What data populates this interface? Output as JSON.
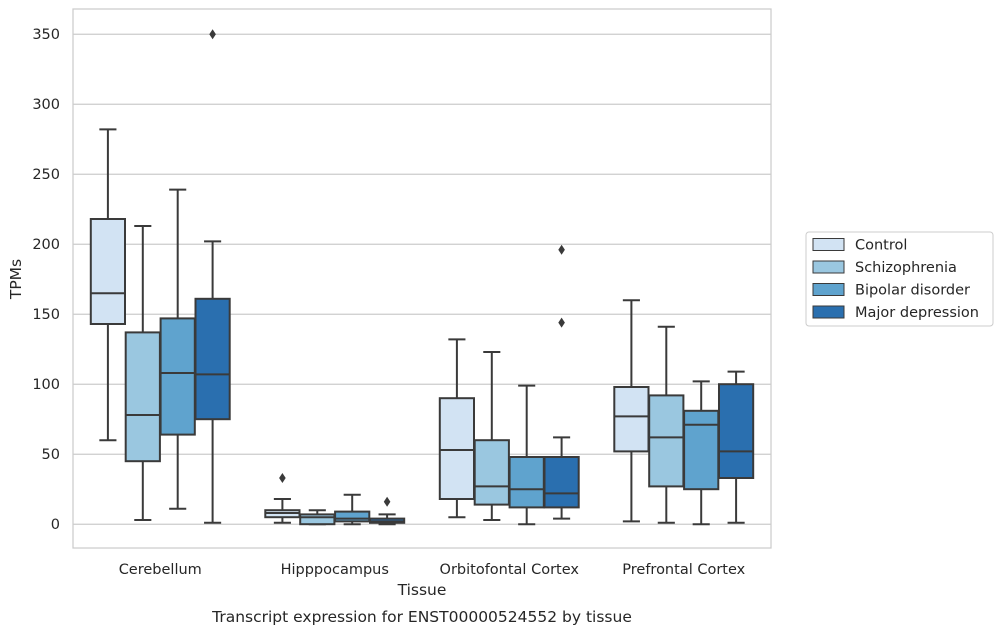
{
  "chart_data": {
    "type": "box",
    "title": "",
    "caption": "Transcript expression for ENST00000524552 by tissue",
    "xlabel": "Tissue",
    "ylabel": "TPMs",
    "ylim": [
      -17,
      368
    ],
    "yticks": [
      0,
      50,
      100,
      150,
      200,
      250,
      300,
      350
    ],
    "grid": "horizontal",
    "legend_position": "right",
    "categories": [
      "Cerebellum",
      "Hipppocampus",
      "Orbitofontal Cortex",
      "Prefrontal Cortex"
    ],
    "series": [
      {
        "name": "Control",
        "color": "#d2e3f3",
        "boxes": [
          {
            "whislo": 60,
            "q1": 143,
            "med": 165,
            "q3": 218,
            "whishi": 282,
            "fliers": []
          },
          {
            "whislo": 1,
            "q1": 5,
            "med": 8,
            "q3": 10,
            "whishi": 18,
            "fliers": [
              33
            ]
          },
          {
            "whislo": 5,
            "q1": 18,
            "med": 53,
            "q3": 90,
            "whishi": 132,
            "fliers": []
          },
          {
            "whislo": 2,
            "q1": 52,
            "med": 77,
            "q3": 98,
            "whishi": 160,
            "fliers": []
          }
        ]
      },
      {
        "name": "Schizophrenia",
        "color": "#9ac7e0",
        "boxes": [
          {
            "whislo": 3,
            "q1": 45,
            "med": 78,
            "q3": 137,
            "whishi": 213,
            "fliers": []
          },
          {
            "whislo": 0,
            "q1": 0,
            "med": 5,
            "q3": 7,
            "whishi": 10,
            "fliers": []
          },
          {
            "whislo": 3,
            "q1": 14,
            "med": 27,
            "q3": 60,
            "whishi": 123,
            "fliers": []
          },
          {
            "whislo": 1,
            "q1": 27,
            "med": 62,
            "q3": 92,
            "whishi": 141,
            "fliers": []
          }
        ]
      },
      {
        "name": "Bipolar disorder",
        "color": "#5fa3ce",
        "boxes": [
          {
            "whislo": 11,
            "q1": 64,
            "med": 108,
            "q3": 147,
            "whishi": 239,
            "fliers": []
          },
          {
            "whislo": 0,
            "q1": 2,
            "med": 4,
            "q3": 9,
            "whishi": 21,
            "fliers": []
          },
          {
            "whislo": 0,
            "q1": 12,
            "med": 25,
            "q3": 48,
            "whishi": 99,
            "fliers": []
          },
          {
            "whislo": 0,
            "q1": 25,
            "med": 71,
            "q3": 81,
            "whishi": 102,
            "fliers": []
          }
        ]
      },
      {
        "name": "Major depression",
        "color": "#2a6faf",
        "boxes": [
          {
            "whislo": 1,
            "q1": 75,
            "med": 107,
            "q3": 161,
            "whishi": 202,
            "fliers": [
              350
            ]
          },
          {
            "whislo": 0,
            "q1": 1,
            "med": 2,
            "q3": 4,
            "whishi": 7,
            "fliers": [
              16
            ]
          },
          {
            "whislo": 4,
            "q1": 12,
            "med": 22,
            "q3": 48,
            "whishi": 62,
            "fliers": [
              144,
              196
            ]
          },
          {
            "whislo": 1,
            "q1": 33,
            "med": 52,
            "q3": 100,
            "whishi": 109,
            "fliers": []
          }
        ]
      }
    ]
  }
}
